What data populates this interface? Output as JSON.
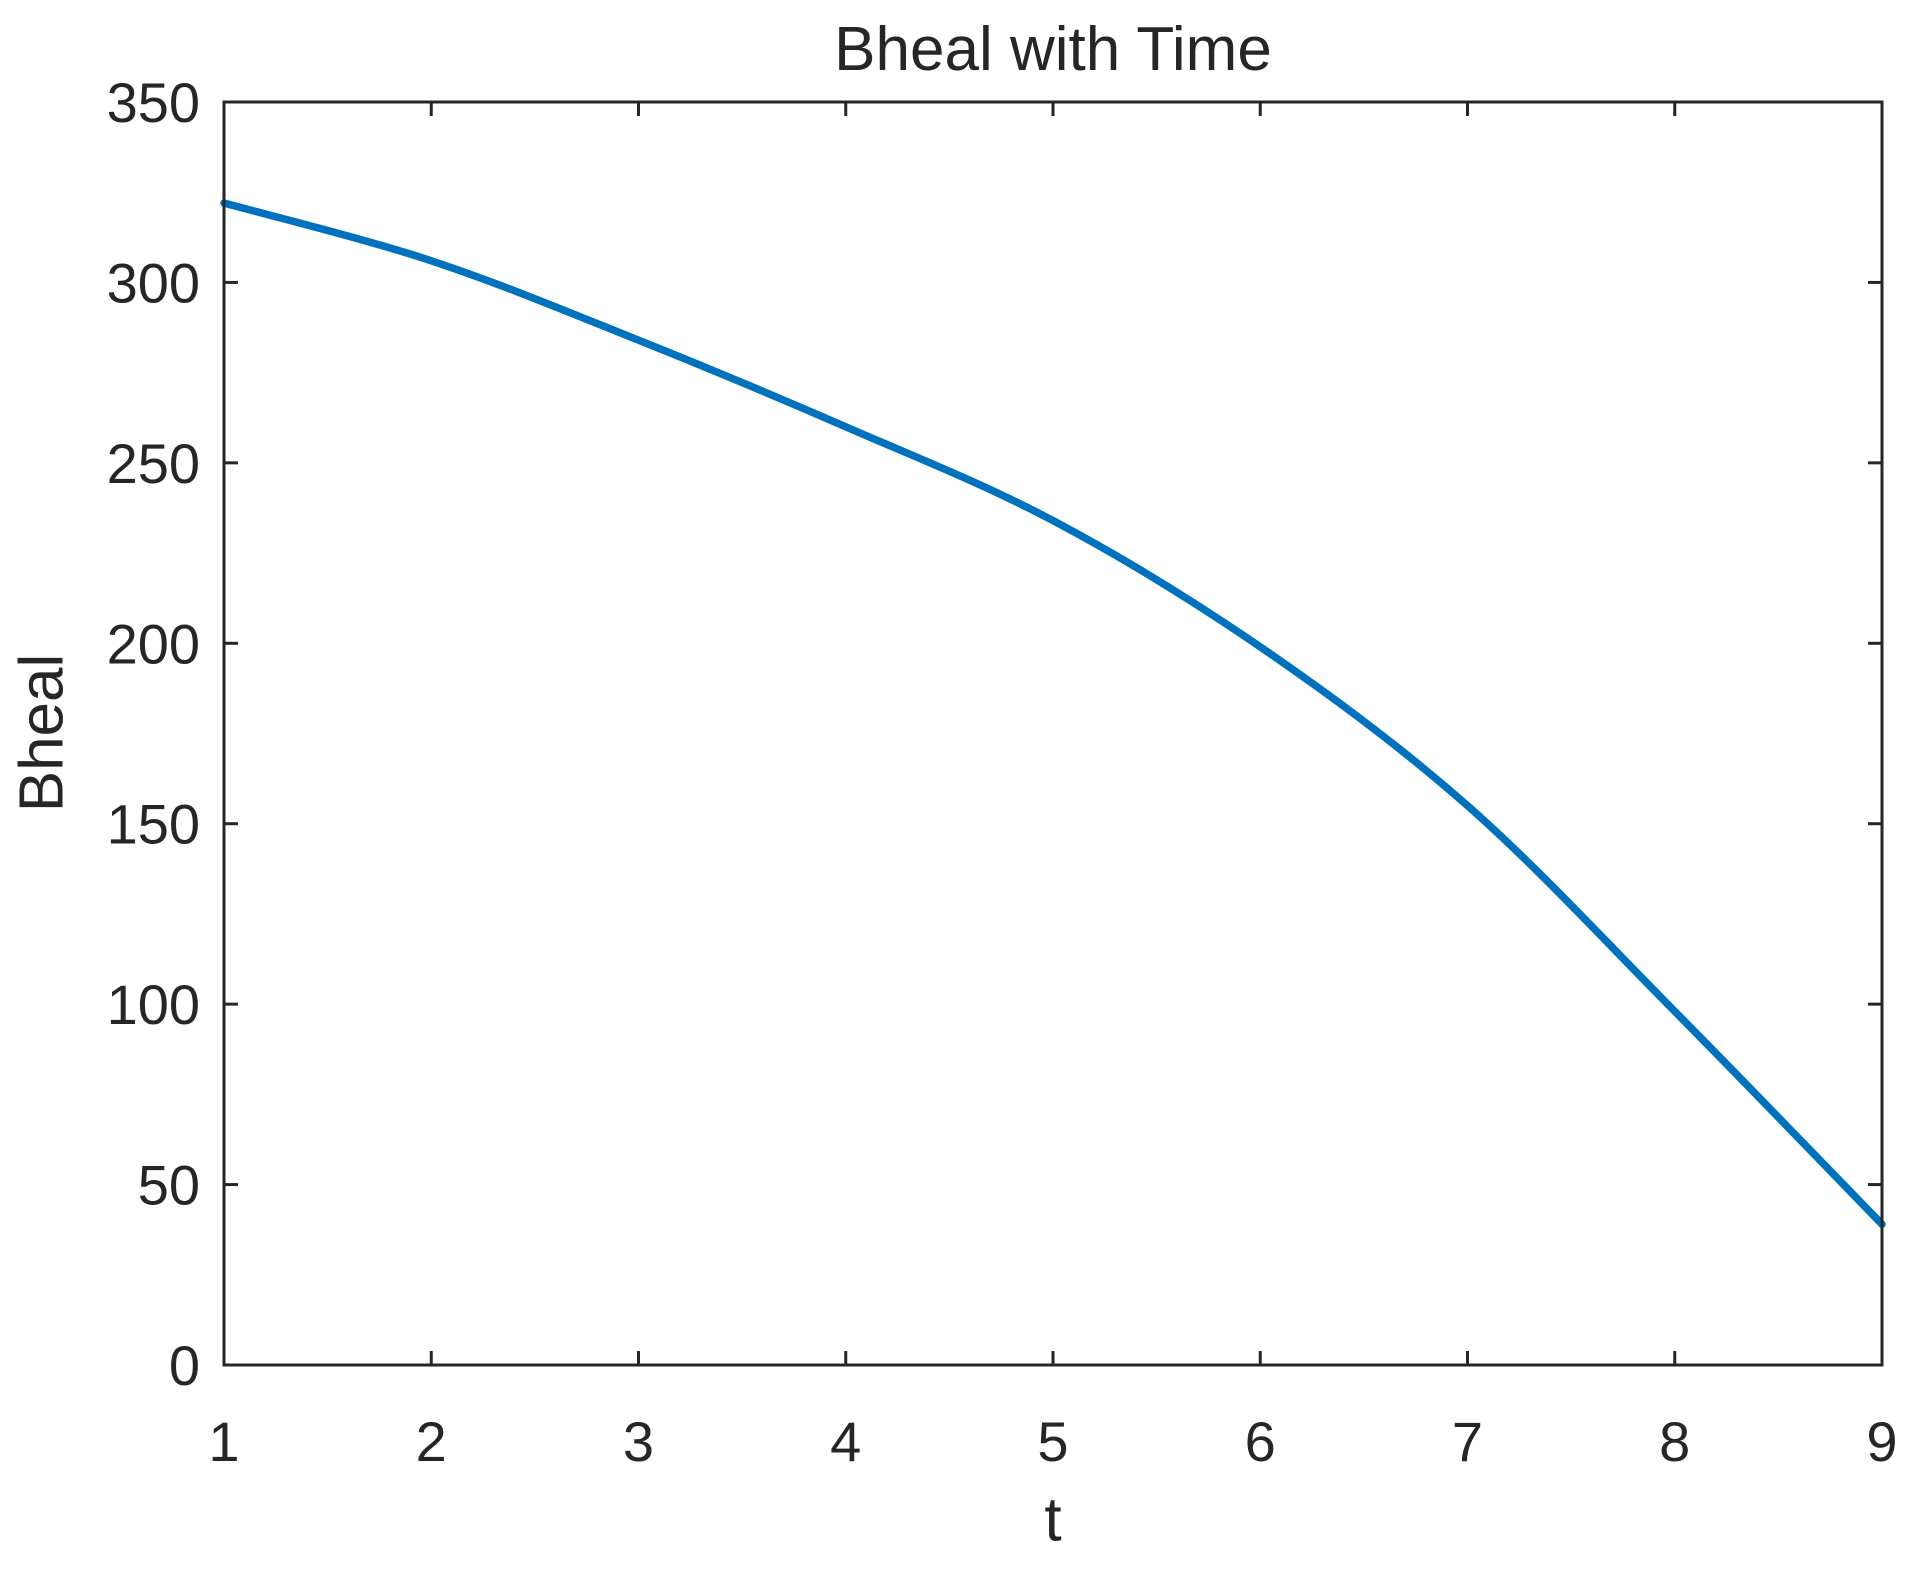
{
  "chart_data": {
    "type": "line",
    "title": "Bheal with Time",
    "xlabel": "t",
    "ylabel": "Bheal",
    "x": [
      1,
      2,
      3,
      4,
      5,
      6,
      7,
      8,
      9
    ],
    "series": [
      {
        "name": "Bheal",
        "values": [
          322,
          306,
          284,
          260,
          234,
          199,
          155,
          98,
          39
        ]
      }
    ],
    "xlim": [
      1,
      9
    ],
    "ylim": [
      0,
      350
    ],
    "xticks": [
      1,
      2,
      3,
      4,
      5,
      6,
      7,
      8,
      9
    ],
    "yticks": [
      0,
      50,
      100,
      150,
      200,
      250,
      300,
      350
    ],
    "grid": false,
    "legend_position": "none",
    "line_color": "#0072BD",
    "axes_color": "#262626",
    "background_color": "#ffffff"
  }
}
